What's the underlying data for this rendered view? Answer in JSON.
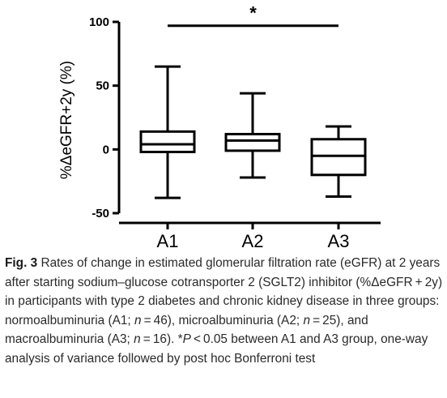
{
  "chart_data": {
    "type": "box",
    "ylabel": "%ΔeGFR+2y (%)",
    "xlabel": "",
    "ylim": [
      -50,
      100
    ],
    "yticks": [
      100,
      50,
      0,
      -50
    ],
    "categories": [
      "A1",
      "A2",
      "A3"
    ],
    "boxes": [
      {
        "category": "A1",
        "min": -38,
        "q1": -2,
        "median": 4,
        "q3": 14,
        "max": 65
      },
      {
        "category": "A2",
        "min": -22,
        "q1": -1,
        "median": 7,
        "q3": 12,
        "max": 44
      },
      {
        "category": "A3",
        "min": -37,
        "q1": -20,
        "median": -5,
        "q3": 8,
        "max": 18
      }
    ],
    "significance": {
      "from": "A1",
      "to": "A3",
      "label": "*",
      "y": 97
    },
    "grid": false,
    "colors": {
      "stroke": "#000000",
      "fill": "#ffffff"
    }
  },
  "caption": {
    "fig_label": "Fig. 3",
    "parts": [
      {
        "t": "  Rates of change in estimated glomerular filtration rate (eGFR) at 2 years after starting sodium–glucose cotransporter 2 (SGLT2) inhibitor (%ΔeGFR + 2y) in participants with type 2 diabetes and chronic kidney disease in three groups: normoalbuminuria (A1; ",
        "i": false
      },
      {
        "t": "n",
        "i": true
      },
      {
        "t": " = 46), microalbuminuria (A2; ",
        "i": false
      },
      {
        "t": "n",
        "i": true
      },
      {
        "t": " = 25), and macroalbuminuria (A3; ",
        "i": false
      },
      {
        "t": "n",
        "i": true
      },
      {
        "t": " = 16). *",
        "i": false
      },
      {
        "t": "P",
        "i": true
      },
      {
        "t": " < 0.05 between A1 and A3 group, one-way analysis of variance followed by post hoc Bonferroni test",
        "i": false
      }
    ]
  }
}
